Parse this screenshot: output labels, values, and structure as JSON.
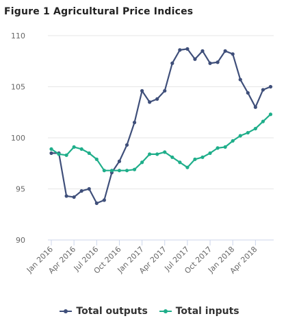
{
  "chart_data": {
    "type": "line",
    "title": "Figure 1 Agricultural Price Indices",
    "xlabel": "",
    "ylabel": "",
    "ylim": [
      90,
      110
    ],
    "yticks": [
      90,
      95,
      100,
      105,
      110
    ],
    "grid": true,
    "legend_position": "bottom",
    "x": [
      "Jan 2016",
      "Feb 2016",
      "Mar 2016",
      "Apr 2016",
      "May 2016",
      "Jun 2016",
      "Jul 2016",
      "Aug 2016",
      "Sep 2016",
      "Oct 2016",
      "Nov 2016",
      "Dec 2016",
      "Jan 2017",
      "Feb 2017",
      "Mar 2017",
      "Apr 2017",
      "May 2017",
      "Jun 2017",
      "Jul 2017",
      "Aug 2017",
      "Sep 2017",
      "Oct 2017",
      "Nov 2017",
      "Dec 2017",
      "Jan 2018",
      "Feb 2018",
      "Mar 2018",
      "Apr 2018",
      "May 2018",
      "Jun 2018"
    ],
    "x_tick_labels": [
      "Jan 2016",
      "Apr 2016",
      "Jul 2016",
      "Oct 2016",
      "Jan 2017",
      "Apr 2017",
      "Jul 2017",
      "Oct 2017",
      "Jan 2018",
      "Apr 2018"
    ],
    "series": [
      {
        "name": "Total outputs",
        "color": "#3f4f7a",
        "values": [
          98.5,
          98.5,
          94.3,
          94.2,
          94.8,
          95.0,
          93.6,
          93.9,
          96.6,
          97.7,
          99.3,
          101.5,
          104.6,
          103.5,
          103.8,
          104.6,
          107.3,
          108.6,
          108.7,
          107.7,
          108.5,
          107.3,
          107.4,
          108.5,
          108.2,
          105.7,
          104.4,
          103.0,
          104.7,
          105.0
        ]
      },
      {
        "name": "Total inputs",
        "color": "#1fae8a",
        "values": [
          98.9,
          98.4,
          98.3,
          99.1,
          98.9,
          98.5,
          97.9,
          96.8,
          96.8,
          96.8,
          96.8,
          96.9,
          97.6,
          98.4,
          98.4,
          98.6,
          98.1,
          97.6,
          97.1,
          97.9,
          98.1,
          98.5,
          99.0,
          99.1,
          99.7,
          100.2,
          100.5,
          100.9,
          101.6,
          102.3
        ]
      }
    ]
  }
}
